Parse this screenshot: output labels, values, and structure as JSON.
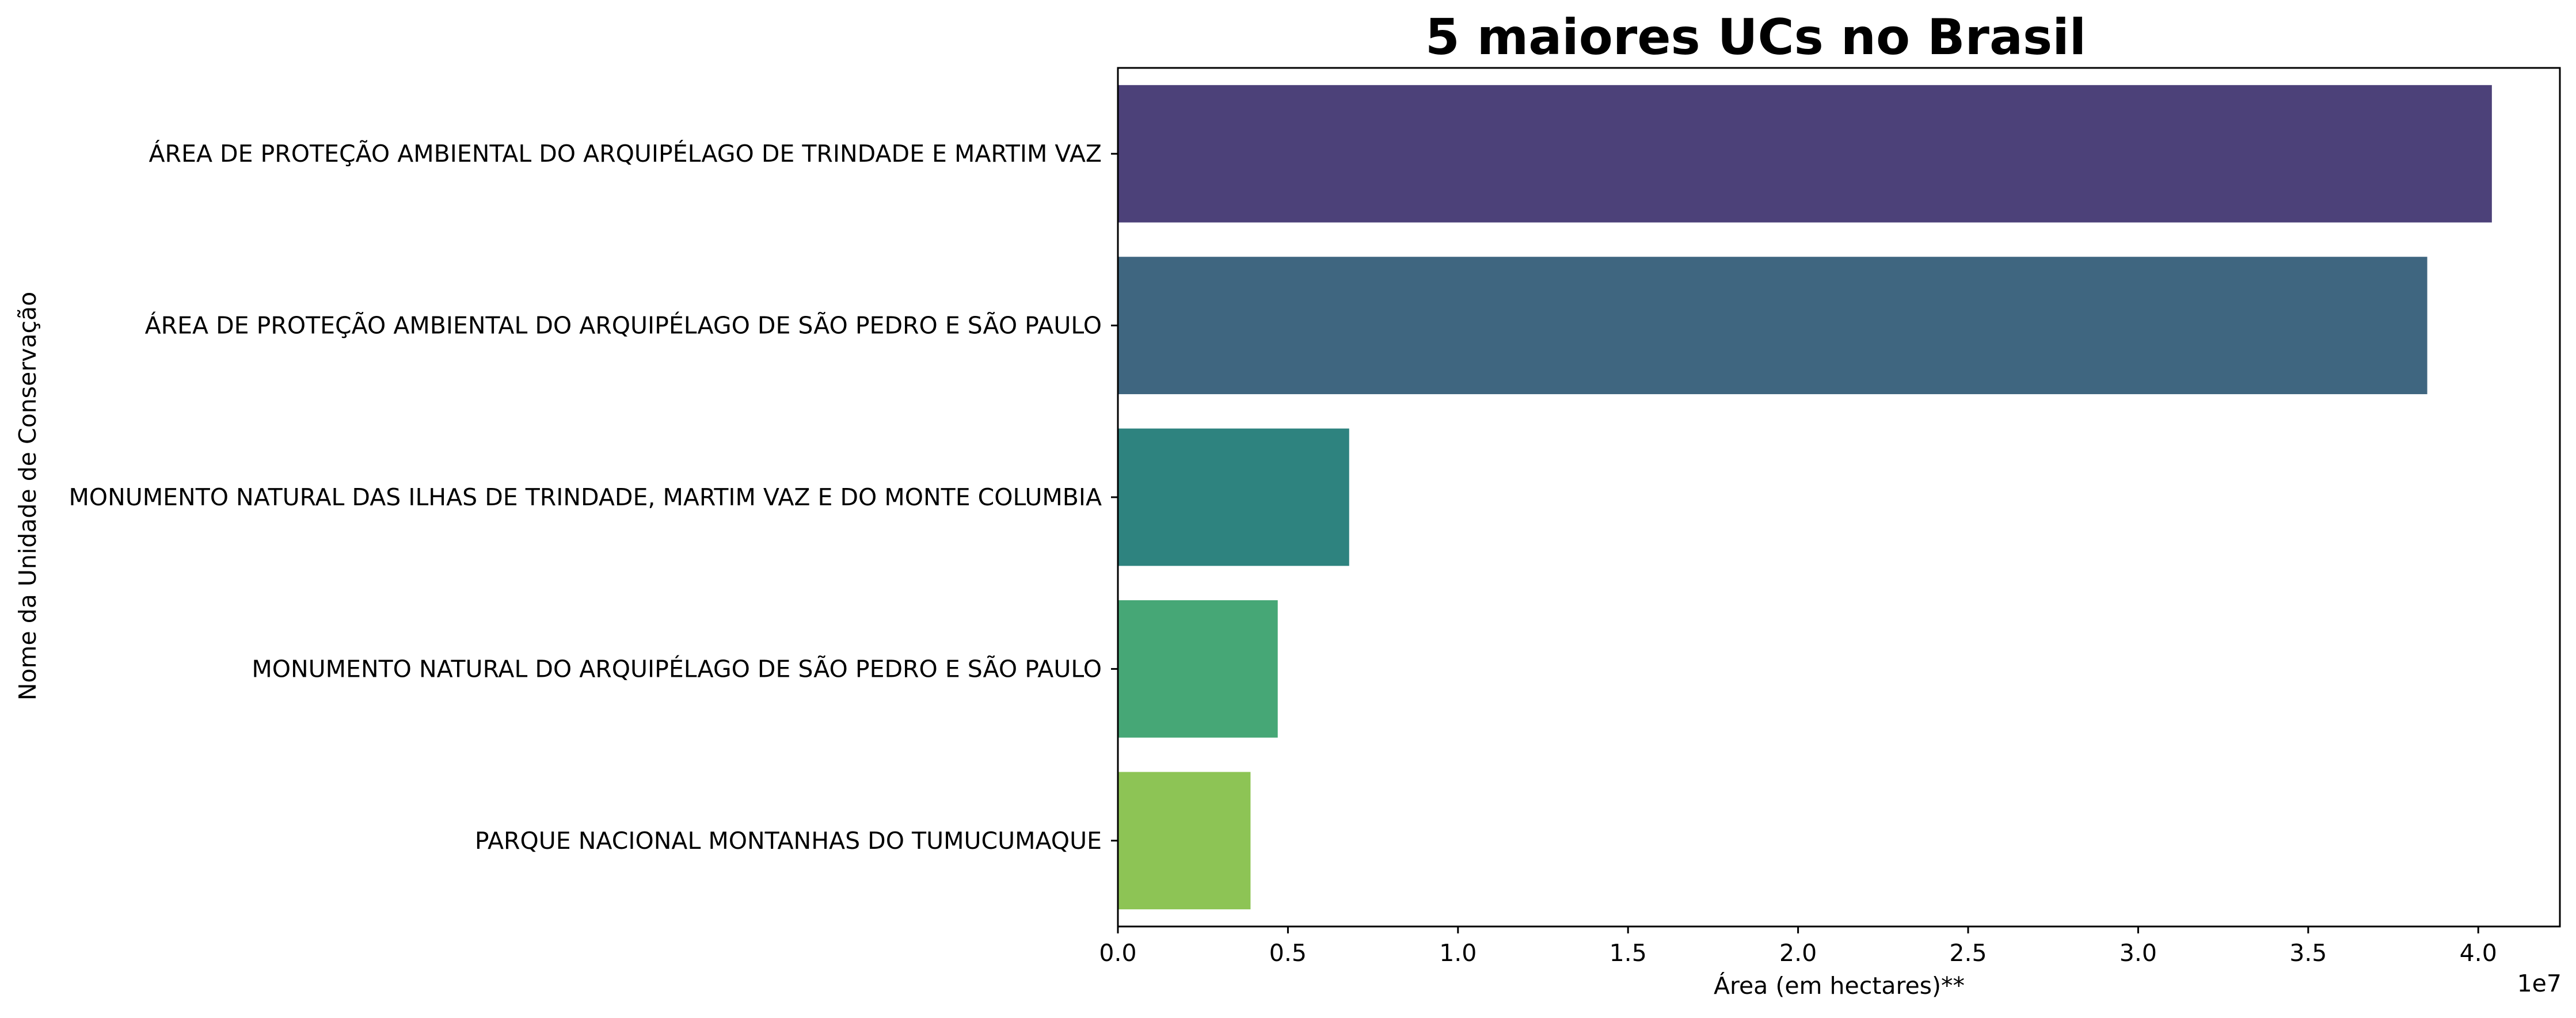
{
  "chart_data": {
    "type": "bar",
    "orientation": "horizontal",
    "title": "5 maiores UCs no Brasil",
    "xlabel": "Área (em hectares)**",
    "ylabel": "Nome da Unidade de Conservação",
    "x_offset_label": "1e7",
    "x_scale": 10000000,
    "xlim": [
      0,
      4.24
    ],
    "xticks": [
      0.0,
      0.5,
      1.0,
      1.5,
      2.0,
      2.5,
      3.0,
      3.5,
      4.0
    ],
    "xtick_labels": [
      "0.0",
      "0.5",
      "1.0",
      "1.5",
      "2.0",
      "2.5",
      "3.0",
      "3.5",
      "4.0"
    ],
    "grid": false,
    "legend": "none",
    "categories": [
      "ÁREA DE PROTEÇÃO AMBIENTAL DO ARQUIPÉLAGO DE TRINDADE E MARTIM VAZ",
      "ÁREA DE PROTEÇÃO AMBIENTAL DO ARQUIPÉLAGO DE SÃO PEDRO E SÃO PAULO",
      "MONUMENTO NATURAL DAS ILHAS DE TRINDADE, MARTIM VAZ E DO MONTE COLUMBIA",
      "MONUMENTO NATURAL DO ARQUIPÉLAGO DE SÃO PEDRO E SÃO PAULO",
      "PARQUE NACIONAL MONTANHAS DO TUMUCUMAQUE"
    ],
    "values": [
      4.04,
      3.85,
      0.68,
      0.47,
      0.39
    ],
    "colors": [
      "#4c4179",
      "#3f6680",
      "#2e837f",
      "#46a776",
      "#8dc455"
    ]
  }
}
